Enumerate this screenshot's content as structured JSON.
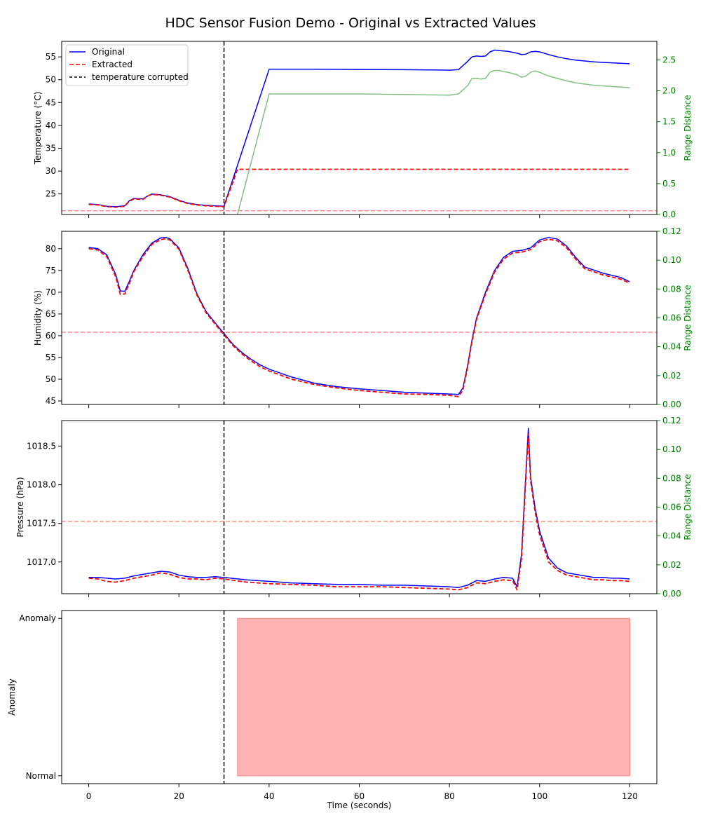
{
  "figure": {
    "title": "HDC Sensor Fusion Demo - Original vs Extracted Values"
  },
  "chart_data": [
    {
      "type": "line",
      "ylabel": "Temperature (°C)",
      "y2label": "Range Distance",
      "xlim": [
        -6,
        126
      ],
      "ylim": [
        20.5,
        58.4
      ],
      "y2lim": [
        0,
        2.8
      ],
      "yticks": [
        25,
        30,
        35,
        40,
        45,
        50,
        55
      ],
      "y2ticks": [
        0.0,
        0.5,
        1.0,
        1.5,
        2.0,
        2.5
      ],
      "legend": {
        "position": "top-left",
        "entries": [
          "Original",
          "Extracted",
          "temperature corrupted"
        ]
      },
      "series": [
        {
          "name": "Original",
          "color": "#0000ff",
          "x": [
            0,
            2,
            4,
            6,
            8,
            9,
            10,
            12,
            13,
            14,
            16,
            18,
            20,
            22,
            24,
            26,
            28,
            30,
            40,
            50,
            60,
            70,
            80,
            82,
            84,
            85,
            86,
            87,
            88,
            89,
            90,
            91,
            92,
            93,
            94,
            95,
            96,
            97,
            98,
            99,
            100,
            101,
            102,
            104,
            106,
            108,
            110,
            112,
            114,
            116,
            118,
            120
          ],
          "y": [
            22.8,
            22.7,
            22.3,
            22.2,
            22.4,
            23.5,
            24.0,
            23.9,
            24.5,
            25.0,
            24.8,
            24.4,
            23.6,
            23.0,
            22.7,
            22.5,
            22.4,
            22.3,
            52.3,
            52.3,
            52.25,
            52.2,
            52.1,
            52.2,
            54.0,
            55.0,
            55.2,
            55.1,
            55.2,
            56.1,
            56.5,
            56.4,
            56.3,
            56.2,
            56.0,
            55.8,
            55.5,
            55.6,
            56.1,
            56.2,
            56.1,
            55.8,
            55.5,
            55.0,
            54.6,
            54.3,
            54.1,
            53.9,
            53.8,
            53.7,
            53.6,
            53.5
          ]
        },
        {
          "name": "Extracted",
          "color": "#ff0000",
          "x": [
            0,
            2,
            4,
            6,
            8,
            9,
            10,
            12,
            13,
            14,
            16,
            18,
            20,
            22,
            24,
            26,
            28,
            30,
            33,
            120
          ],
          "y": [
            22.7,
            22.6,
            22.2,
            22.1,
            22.3,
            23.4,
            23.9,
            23.8,
            24.5,
            24.9,
            24.7,
            24.3,
            23.5,
            22.9,
            22.6,
            22.4,
            22.3,
            22.2,
            30.4,
            30.4
          ]
        },
        {
          "name": "",
          "axis": "y2",
          "color": "#80c080",
          "x": [
            33,
            40,
            50,
            60,
            70,
            80,
            82,
            84,
            85,
            86,
            87,
            88,
            89,
            90,
            91,
            92,
            93,
            94,
            95,
            96,
            97,
            98,
            99,
            100,
            101,
            102,
            104,
            106,
            108,
            110,
            112,
            114,
            116,
            118,
            120
          ],
          "y": [
            0.0,
            1.95,
            1.95,
            1.95,
            1.94,
            1.93,
            1.95,
            2.08,
            2.2,
            2.2,
            2.19,
            2.2,
            2.3,
            2.33,
            2.33,
            2.31,
            2.3,
            2.28,
            2.26,
            2.22,
            2.24,
            2.3,
            2.32,
            2.3,
            2.27,
            2.24,
            2.2,
            2.16,
            2.13,
            2.11,
            2.09,
            2.08,
            2.07,
            2.06,
            2.05
          ]
        }
      ],
      "threshold": {
        "axis": "y2",
        "value": 0.06,
        "color": "#ff8080"
      },
      "vline": {
        "x": 30,
        "label": "temperature corrupted"
      }
    },
    {
      "type": "line",
      "ylabel": "Humidity (%)",
      "y2label": "Range Distance",
      "xlim": [
        -6,
        126
      ],
      "ylim": [
        44.2,
        84.0
      ],
      "y2lim": [
        0,
        0.12
      ],
      "yticks": [
        45,
        50,
        55,
        60,
        65,
        70,
        75,
        80
      ],
      "y2ticks": [
        0.0,
        0.02,
        0.04,
        0.06,
        0.08,
        0.1,
        0.12
      ],
      "series": [
        {
          "name": "Original",
          "color": "#0000ff",
          "x": [
            0,
            2,
            4,
            6,
            7,
            8,
            9,
            10,
            12,
            14,
            16,
            17,
            18,
            20,
            22,
            24,
            26,
            28,
            30,
            32,
            34,
            36,
            38,
            40,
            45,
            50,
            55,
            60,
            65,
            70,
            75,
            80,
            82,
            83,
            84,
            85,
            86,
            88,
            90,
            92,
            94,
            96,
            98,
            100,
            102,
            104,
            106,
            108,
            110,
            114,
            118,
            120
          ],
          "y": [
            80.3,
            80.0,
            78.6,
            74.0,
            70.3,
            70.2,
            72.5,
            75.0,
            78.6,
            81.3,
            82.5,
            82.6,
            82.3,
            80.2,
            75.4,
            69.6,
            65.6,
            63.0,
            60.5,
            58.0,
            56.1,
            54.6,
            53.3,
            52.3,
            50.5,
            49.1,
            48.3,
            47.8,
            47.4,
            47.0,
            46.8,
            46.6,
            46.5,
            48.0,
            53.0,
            59.0,
            64.0,
            70.0,
            75.0,
            78.0,
            79.4,
            79.6,
            80.2,
            82.0,
            82.6,
            82.2,
            80.6,
            78.0,
            75.8,
            74.4,
            73.4,
            72.4
          ]
        },
        {
          "name": "Extracted",
          "color": "#ff0000",
          "x": [
            0,
            2,
            4,
            6,
            7,
            8,
            9,
            10,
            12,
            14,
            16,
            17,
            18,
            20,
            22,
            24,
            26,
            28,
            30,
            32,
            34,
            36,
            38,
            40,
            45,
            50,
            55,
            60,
            65,
            70,
            75,
            80,
            82,
            83,
            84,
            85,
            86,
            88,
            90,
            92,
            94,
            96,
            98,
            100,
            102,
            104,
            106,
            108,
            110,
            114,
            118,
            120
          ],
          "y": [
            80.0,
            79.7,
            78.2,
            73.5,
            69.5,
            69.6,
            72.0,
            74.7,
            78.2,
            81.0,
            82.1,
            82.3,
            82.0,
            79.9,
            75.0,
            69.3,
            65.3,
            62.7,
            60.2,
            57.7,
            55.8,
            54.2,
            52.9,
            51.9,
            50.0,
            48.8,
            48.0,
            47.4,
            47.0,
            46.6,
            46.5,
            46.3,
            46.0,
            47.5,
            52.6,
            58.6,
            63.7,
            69.6,
            74.6,
            77.6,
            79.0,
            79.2,
            79.8,
            81.6,
            82.2,
            81.8,
            80.2,
            77.6,
            75.4,
            74.0,
            73.0,
            72.1
          ]
        }
      ],
      "threshold": {
        "axis": "y2",
        "value": 0.05,
        "color": "#ff8080"
      },
      "vline": {
        "x": 30
      }
    },
    {
      "type": "line",
      "ylabel": "Pressure (hPa)",
      "y2label": "Range Distance",
      "xlim": [
        -6,
        126
      ],
      "ylim": [
        1016.59,
        1018.83
      ],
      "y2lim": [
        0,
        0.12
      ],
      "yticks": [
        1017.0,
        1017.5,
        1018.0,
        1018.5
      ],
      "y2ticks": [
        0.0,
        0.02,
        0.04,
        0.06,
        0.08,
        0.1,
        0.12
      ],
      "series": [
        {
          "name": "Original",
          "color": "#0000ff",
          "x": [
            0,
            2,
            4,
            6,
            8,
            10,
            12,
            14,
            16,
            18,
            20,
            22,
            24,
            26,
            28,
            30,
            35,
            40,
            45,
            50,
            55,
            60,
            65,
            70,
            75,
            80,
            82,
            84,
            86,
            88,
            90,
            92,
            94,
            95,
            96,
            97,
            97.5,
            98,
            99,
            100,
            102,
            104,
            106,
            108,
            110,
            112,
            114,
            116,
            118,
            120
          ],
          "y": [
            1016.8,
            1016.8,
            1016.79,
            1016.78,
            1016.79,
            1016.82,
            1016.84,
            1016.86,
            1016.88,
            1016.87,
            1016.83,
            1016.81,
            1016.8,
            1016.8,
            1016.81,
            1016.8,
            1016.77,
            1016.75,
            1016.73,
            1016.72,
            1016.71,
            1016.71,
            1016.7,
            1016.7,
            1016.69,
            1016.68,
            1016.67,
            1016.7,
            1016.76,
            1016.75,
            1016.78,
            1016.8,
            1016.79,
            1016.68,
            1017.1,
            1018.2,
            1018.73,
            1018.1,
            1017.7,
            1017.4,
            1017.05,
            1016.92,
            1016.86,
            1016.84,
            1016.82,
            1016.8,
            1016.8,
            1016.79,
            1016.79,
            1016.78
          ]
        },
        {
          "name": "Extracted",
          "color": "#ff0000",
          "x": [
            0,
            2,
            4,
            6,
            8,
            10,
            12,
            14,
            16,
            18,
            20,
            22,
            24,
            26,
            28,
            30,
            35,
            40,
            45,
            50,
            55,
            60,
            65,
            70,
            75,
            80,
            82,
            84,
            86,
            88,
            90,
            92,
            94,
            95,
            96,
            97,
            97.5,
            98,
            99,
            100,
            102,
            104,
            106,
            108,
            110,
            112,
            114,
            116,
            118,
            120
          ],
          "y": [
            1016.79,
            1016.78,
            1016.75,
            1016.74,
            1016.76,
            1016.79,
            1016.81,
            1016.83,
            1016.86,
            1016.84,
            1016.8,
            1016.78,
            1016.78,
            1016.77,
            1016.79,
            1016.78,
            1016.74,
            1016.72,
            1016.71,
            1016.7,
            1016.68,
            1016.68,
            1016.68,
            1016.67,
            1016.66,
            1016.65,
            1016.64,
            1016.67,
            1016.73,
            1016.72,
            1016.75,
            1016.77,
            1016.76,
            1016.64,
            1017.05,
            1018.15,
            1018.66,
            1018.05,
            1017.65,
            1017.35,
            1017.0,
            1016.89,
            1016.83,
            1016.81,
            1016.79,
            1016.77,
            1016.77,
            1016.76,
            1016.76,
            1016.75
          ]
        }
      ],
      "threshold": {
        "axis": "y2",
        "value": 0.05,
        "color": "#ff8080"
      },
      "vline": {
        "x": 30
      }
    },
    {
      "type": "area",
      "ylabel": "Anomaly",
      "xlabel": "Time (seconds)",
      "xlim": [
        -6,
        126
      ],
      "ylim": [
        -0.05,
        1.05
      ],
      "xticks": [
        0,
        20,
        40,
        60,
        80,
        100,
        120
      ],
      "ytick_labels": [
        "Normal",
        "Anomaly"
      ],
      "anomaly_span": {
        "x": [
          33,
          120
        ],
        "color": "#ff8080"
      },
      "vline": {
        "x": 30
      }
    }
  ]
}
